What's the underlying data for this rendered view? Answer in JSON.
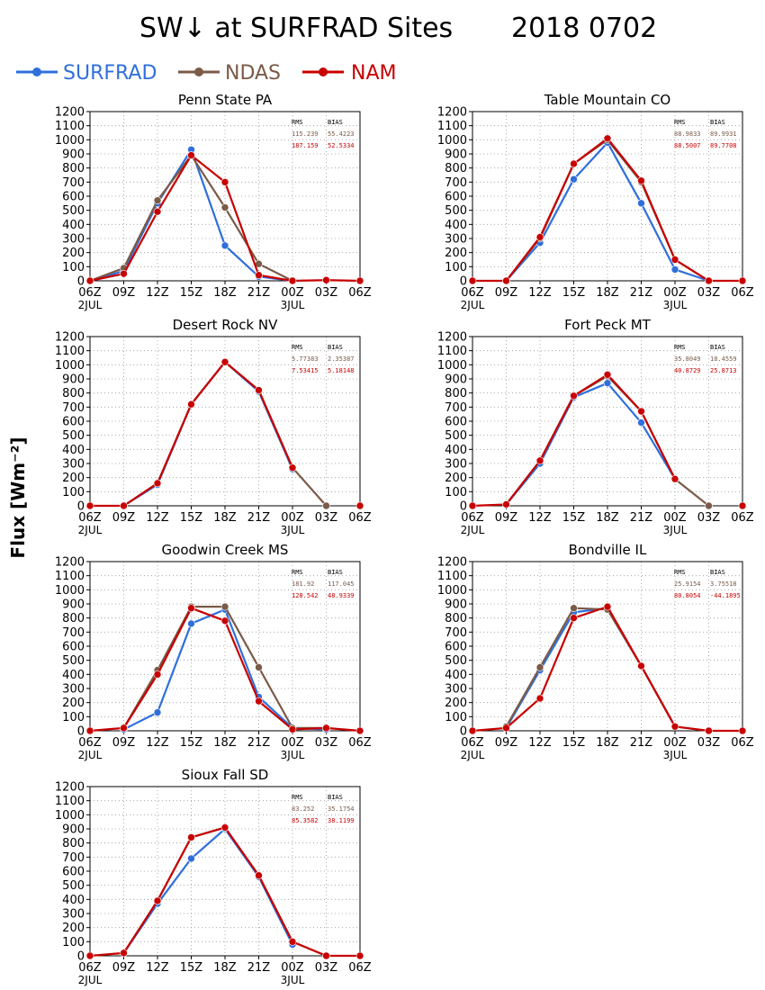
{
  "title": "SW↓ at SURFRAD Sites",
  "date": "2018 0702",
  "y_axis_label": "Flux [Wm⁻²]",
  "legend": [
    {
      "name": "SURFRAD",
      "color": "#2f6fdc"
    },
    {
      "name": "NDAS",
      "color": "#7a5a48"
    },
    {
      "name": "NAM",
      "color": "#c80000"
    }
  ],
  "stats_headers": {
    "rms": "RMS",
    "bias": "BIAS"
  },
  "chart_data": [
    {
      "type": "line",
      "title": "Penn State PA",
      "categories": [
        "06Z",
        "09Z",
        "12Z",
        "15Z",
        "18Z",
        "21Z",
        "00Z",
        "03Z",
        "06Z"
      ],
      "date_labels": [
        "2JUL",
        "3JUL"
      ],
      "yticks": [
        "0",
        "100",
        "200",
        "300",
        "400",
        "500",
        "600",
        "700",
        "800",
        "900",
        "1000",
        "1100",
        "1200"
      ],
      "ylim": [
        0,
        1200
      ],
      "grid": true,
      "series": [
        {
          "name": "SURFRAD",
          "values": [
            0,
            70,
            550,
            930,
            250,
            30,
            0,
            null,
            null
          ]
        },
        {
          "name": "NDAS",
          "values": [
            0,
            90,
            570,
            890,
            520,
            120,
            0,
            null,
            null
          ]
        },
        {
          "name": "NAM",
          "values": [
            0,
            50,
            490,
            890,
            700,
            40,
            0,
            5,
            0
          ]
        }
      ],
      "stats": {
        "ndas_rms": "115.239",
        "ndas_bias": "55.4223",
        "nam_rms": "187.159",
        "nam_bias": "52.5334"
      }
    },
    {
      "type": "line",
      "title": "Table Mountain CO",
      "categories": [
        "06Z",
        "09Z",
        "12Z",
        "15Z",
        "18Z",
        "21Z",
        "00Z",
        "03Z",
        "06Z"
      ],
      "date_labels": [
        "2JUL",
        "3JUL"
      ],
      "yticks": [
        "0",
        "100",
        "200",
        "300",
        "400",
        "500",
        "600",
        "700",
        "800",
        "900",
        "1000",
        "1100",
        "1200"
      ],
      "ylim": [
        0,
        1200
      ],
      "grid": true,
      "series": [
        {
          "name": "SURFRAD",
          "values": [
            null,
            0,
            270,
            720,
            980,
            550,
            80,
            0,
            null
          ]
        },
        {
          "name": "NDAS",
          "values": [
            null,
            0,
            300,
            830,
            1000,
            700,
            150,
            0,
            null
          ]
        },
        {
          "name": "NAM",
          "values": [
            0,
            0,
            310,
            830,
            1010,
            710,
            150,
            0,
            0
          ]
        }
      ],
      "stats": {
        "ndas_rms": "88.9833",
        "ndas_bias": "89.9931",
        "nam_rms": "88.5007",
        "nam_bias": "89.7708"
      }
    },
    {
      "type": "line",
      "title": "Desert Rock NV",
      "categories": [
        "06Z",
        "09Z",
        "12Z",
        "15Z",
        "18Z",
        "21Z",
        "00Z",
        "03Z",
        "06Z"
      ],
      "date_labels": [
        "2JUL",
        "3JUL"
      ],
      "yticks": [
        "0",
        "100",
        "200",
        "300",
        "400",
        "500",
        "600",
        "700",
        "800",
        "900",
        "1000",
        "1100",
        "1200"
      ],
      "ylim": [
        0,
        1200
      ],
      "grid": true,
      "series": [
        {
          "name": "SURFRAD",
          "values": [
            null,
            0,
            150,
            720,
            1020,
            810,
            260,
            null,
            null
          ]
        },
        {
          "name": "NDAS",
          "values": [
            null,
            0,
            160,
            720,
            1020,
            820,
            270,
            0,
            null
          ]
        },
        {
          "name": "NAM",
          "values": [
            0,
            0,
            160,
            720,
            1020,
            820,
            270,
            null,
            0
          ]
        }
      ],
      "stats": {
        "ndas_rms": "5.77383",
        "ndas_bias": "2.35387",
        "nam_rms": "7.53415",
        "nam_bias": "5.18148"
      }
    },
    {
      "type": "line",
      "title": "Fort Peck MT",
      "categories": [
        "06Z",
        "09Z",
        "12Z",
        "15Z",
        "18Z",
        "21Z",
        "00Z",
        "03Z",
        "06Z"
      ],
      "date_labels": [
        "2JUL",
        "3JUL"
      ],
      "yticks": [
        "0",
        "100",
        "200",
        "300",
        "400",
        "500",
        "600",
        "700",
        "800",
        "900",
        "1000",
        "1100",
        "1200"
      ],
      "ylim": [
        0,
        1200
      ],
      "grid": true,
      "series": [
        {
          "name": "SURFRAD",
          "values": [
            null,
            10,
            300,
            770,
            870,
            590,
            190,
            null,
            null
          ]
        },
        {
          "name": "NDAS",
          "values": [
            null,
            10,
            320,
            780,
            920,
            670,
            190,
            0,
            null
          ]
        },
        {
          "name": "NAM",
          "values": [
            0,
            10,
            320,
            780,
            930,
            670,
            190,
            null,
            0
          ]
        }
      ],
      "stats": {
        "ndas_rms": "35.8049",
        "ndas_bias": "18.4559",
        "nam_rms": "40.8729",
        "nam_bias": "25.8713"
      }
    },
    {
      "type": "line",
      "title": "Goodwin Creek MS",
      "categories": [
        "06Z",
        "09Z",
        "12Z",
        "15Z",
        "18Z",
        "21Z",
        "00Z",
        "03Z",
        "06Z"
      ],
      "date_labels": [
        "2JUL",
        "3JUL"
      ],
      "yticks": [
        "0",
        "100",
        "200",
        "300",
        "400",
        "500",
        "600",
        "700",
        "800",
        "900",
        "1000",
        "1100",
        "1200"
      ],
      "ylim": [
        0,
        1200
      ],
      "grid": true,
      "series": [
        {
          "name": "SURFRAD",
          "values": [
            null,
            10,
            130,
            760,
            860,
            240,
            20,
            10,
            null
          ]
        },
        {
          "name": "NDAS",
          "values": [
            null,
            20,
            430,
            880,
            880,
            450,
            20,
            20,
            null
          ]
        },
        {
          "name": "NAM",
          "values": [
            0,
            20,
            400,
            870,
            780,
            210,
            10,
            20,
            0
          ]
        }
      ],
      "stats": {
        "ndas_rms": "181.92",
        "ndas_bias": "117.045",
        "nam_rms": "128.542",
        "nam_bias": "48.9339"
      }
    },
    {
      "type": "line",
      "title": "Bondville IL",
      "categories": [
        "06Z",
        "09Z",
        "12Z",
        "15Z",
        "18Z",
        "21Z",
        "00Z",
        "03Z",
        "06Z"
      ],
      "date_labels": [
        "2JUL",
        "3JUL"
      ],
      "yticks": [
        "0",
        "100",
        "200",
        "300",
        "400",
        "500",
        "600",
        "700",
        "800",
        "900",
        "1000",
        "1100",
        "1200"
      ],
      "ylim": [
        0,
        1200
      ],
      "grid": true,
      "series": [
        {
          "name": "SURFRAD",
          "values": [
            null,
            20,
            430,
            840,
            870,
            460,
            30,
            null,
            null
          ]
        },
        {
          "name": "NDAS",
          "values": [
            null,
            30,
            450,
            870,
            860,
            460,
            30,
            0,
            null
          ]
        },
        {
          "name": "NAM",
          "values": [
            0,
            20,
            230,
            800,
            880,
            460,
            30,
            0,
            0
          ]
        }
      ],
      "stats": {
        "ndas_rms": "25.9154",
        "ndas_bias": "3.75518",
        "nam_rms": "80.8054",
        "nam_bias": "-44.1895"
      }
    },
    {
      "type": "line",
      "title": "Sioux Fall SD",
      "categories": [
        "06Z",
        "09Z",
        "12Z",
        "15Z",
        "18Z",
        "21Z",
        "00Z",
        "03Z",
        "06Z"
      ],
      "date_labels": [
        "2JUL",
        "3JUL"
      ],
      "yticks": [
        "0",
        "100",
        "200",
        "300",
        "400",
        "500",
        "600",
        "700",
        "800",
        "900",
        "1000",
        "1100",
        "1200"
      ],
      "ylim": [
        0,
        1200
      ],
      "grid": true,
      "series": [
        {
          "name": "SURFRAD",
          "values": [
            null,
            20,
            370,
            690,
            900,
            560,
            80,
            null,
            null
          ]
        },
        {
          "name": "NDAS",
          "values": [
            null,
            20,
            390,
            840,
            910,
            570,
            100,
            0,
            null
          ]
        },
        {
          "name": "NAM",
          "values": [
            0,
            20,
            390,
            840,
            910,
            570,
            100,
            0,
            0
          ]
        }
      ],
      "stats": {
        "ndas_rms": "83.252",
        "ndas_bias": "35.1754",
        "nam_rms": "85.3582",
        "nam_bias": "38.1199"
      }
    }
  ]
}
